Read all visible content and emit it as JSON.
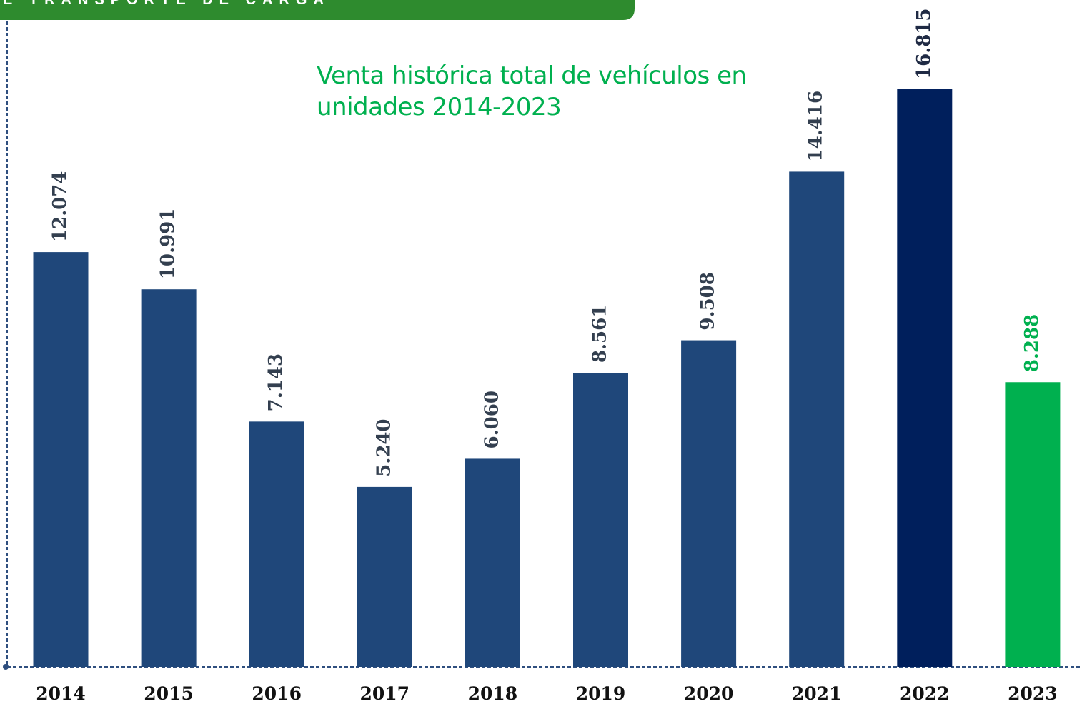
{
  "header": {
    "title": "E TRANSPORTE DE CARGA"
  },
  "chart_data": {
    "type": "bar",
    "title": "Venta histórica total de vehículos en unidades 2014-2023",
    "categories": [
      "2014",
      "2015",
      "2016",
      "2017",
      "2018",
      "2019",
      "2020",
      "2021",
      "2022",
      "2023"
    ],
    "values": [
      12074,
      10991,
      7143,
      5240,
      6060,
      8561,
      9508,
      14416,
      16815,
      8288
    ],
    "value_labels": [
      "12.074",
      "10.991",
      "7.143",
      "5.240",
      "6.060",
      "8.561",
      "9.508",
      "14.416",
      "16.815",
      "8.288"
    ],
    "colors": [
      "#1f477a",
      "#1f477a",
      "#1f477a",
      "#1f477a",
      "#1f477a",
      "#1f477a",
      "#1f477a",
      "#1f477a",
      "#001f5c",
      "#00b04f"
    ],
    "label_colors": [
      "#333f4f",
      "#333f4f",
      "#333f4f",
      "#333f4f",
      "#333f4f",
      "#333f4f",
      "#333f4f",
      "#333f4f",
      "#1f2a44",
      "#00b04f"
    ],
    "ylim": [
      0,
      18000
    ],
    "grid": false
  }
}
